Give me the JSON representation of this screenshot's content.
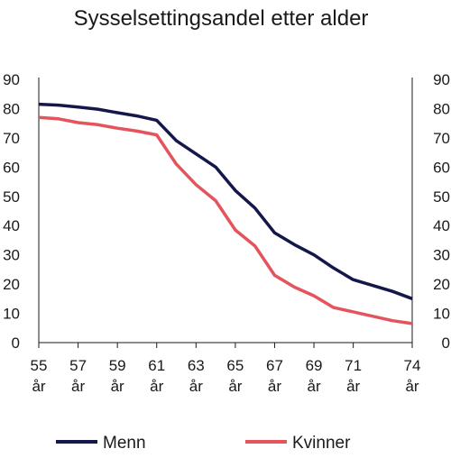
{
  "chart_data": {
    "type": "line",
    "title": "Sysselsettingsandel etter alder",
    "xlabel": "",
    "ylabel": "",
    "x": [
      55,
      56,
      57,
      58,
      59,
      60,
      61,
      62,
      63,
      64,
      65,
      66,
      67,
      68,
      69,
      70,
      71,
      72,
      73,
      74
    ],
    "x_tick_values": [
      55,
      57,
      59,
      61,
      63,
      65,
      67,
      69,
      71,
      74
    ],
    "x_tick_labels": [
      {
        "num": "55",
        "unit": "år"
      },
      {
        "num": "57",
        "unit": "år"
      },
      {
        "num": "59",
        "unit": "år"
      },
      {
        "num": "61",
        "unit": "år"
      },
      {
        "num": "63",
        "unit": "år"
      },
      {
        "num": "65",
        "unit": "år"
      },
      {
        "num": "67",
        "unit": "år"
      },
      {
        "num": "69",
        "unit": "år"
      },
      {
        "num": "71",
        "unit": "år"
      },
      {
        "num": "74",
        "unit": "år"
      }
    ],
    "xlim": [
      55,
      74
    ],
    "ylim": [
      0,
      90
    ],
    "y_ticks": [
      0,
      10,
      20,
      30,
      40,
      50,
      60,
      70,
      80,
      90
    ],
    "y_axis_right": true,
    "grid": false,
    "legend_position": "bottom",
    "series": [
      {
        "name": "Menn",
        "color": "#14174a",
        "values": [
          81.5,
          81.2,
          80.5,
          79.8,
          78.6,
          77.5,
          76,
          69,
          64.5,
          60,
          52,
          46,
          37.5,
          33.5,
          30,
          25.5,
          21.5,
          19.5,
          17.5,
          15
        ]
      },
      {
        "name": "Kvinner",
        "color": "#e4545c",
        "values": [
          77,
          76.5,
          75.2,
          74.5,
          73.3,
          72.3,
          71,
          61,
          54,
          48.5,
          38.5,
          33,
          23,
          19,
          16,
          12,
          10.5,
          9,
          7.5,
          6.5
        ]
      }
    ]
  }
}
